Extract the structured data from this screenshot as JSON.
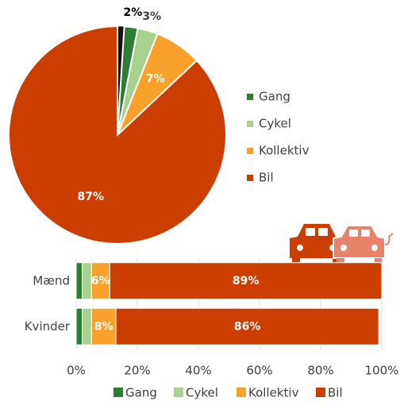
{
  "chart_data": [
    {
      "type": "pie",
      "categories": [
        null,
        "Gang",
        "Cykel",
        "Kollektiv",
        "Bil"
      ],
      "values": [
        1,
        2,
        3,
        7,
        87
      ],
      "value_labels": [
        null,
        "2%",
        "3%",
        "7%",
        "87%"
      ],
      "colors": [
        "#111111",
        "#2e7d32",
        "#a9d18e",
        "#f9a12a",
        "#cc3d00"
      ],
      "legend": "right"
    },
    {
      "type": "stacked-bar-horizontal",
      "categories": [
        "Mænd",
        "Kvinder"
      ],
      "series": [
        {
          "name": "Gang",
          "color": "#2e7d32",
          "values": [
            2,
            2
          ],
          "value_labels": [
            null,
            null
          ]
        },
        {
          "name": "Cykel",
          "color": "#a9d18e",
          "values": [
            3,
            3
          ],
          "value_labels": [
            null,
            null
          ]
        },
        {
          "name": "Kollektiv",
          "color": "#f9a12a",
          "values": [
            6,
            8
          ],
          "value_labels": [
            "6%",
            "8%"
          ]
        },
        {
          "name": "Bil",
          "color": "#cc3d00",
          "values": [
            89,
            86
          ],
          "value_labels": [
            "89%",
            "86%"
          ]
        }
      ],
      "xlim": [
        0,
        100
      ],
      "xticks": [
        {
          "value": 0,
          "label": "0%"
        },
        {
          "value": 20,
          "label": "20%"
        },
        {
          "value": 40,
          "label": "40%"
        },
        {
          "value": 60,
          "label": "60%"
        },
        {
          "value": 80,
          "label": "80%"
        },
        {
          "value": 100,
          "label": "100%"
        }
      ],
      "grid": true,
      "legend": "bottom"
    }
  ]
}
